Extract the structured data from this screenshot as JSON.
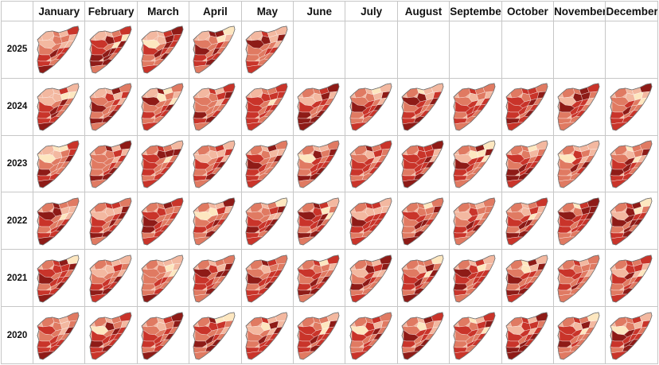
{
  "months": [
    "January",
    "February",
    "March",
    "April",
    "May",
    "June",
    "July",
    "August",
    "September",
    "October",
    "November",
    "December"
  ],
  "years": [
    {
      "label": "2025",
      "map_count": 5
    },
    {
      "label": "2024",
      "map_count": 12
    },
    {
      "label": "2023",
      "map_count": 12
    },
    {
      "label": "2022",
      "map_count": 12
    },
    {
      "label": "2021",
      "map_count": 12
    },
    {
      "label": "2020",
      "map_count": 12
    }
  ],
  "map_colors": {
    "pale": "#fde7c0",
    "light": "#f3b8a0",
    "medium": "#e07a62",
    "strong": "#c9342a",
    "dark": "#8e1b17",
    "outline": "#6b6b6b",
    "border_lines": "#ffffff"
  },
  "icons": {
    "map": "somalia-choropleth-map-icon"
  }
}
